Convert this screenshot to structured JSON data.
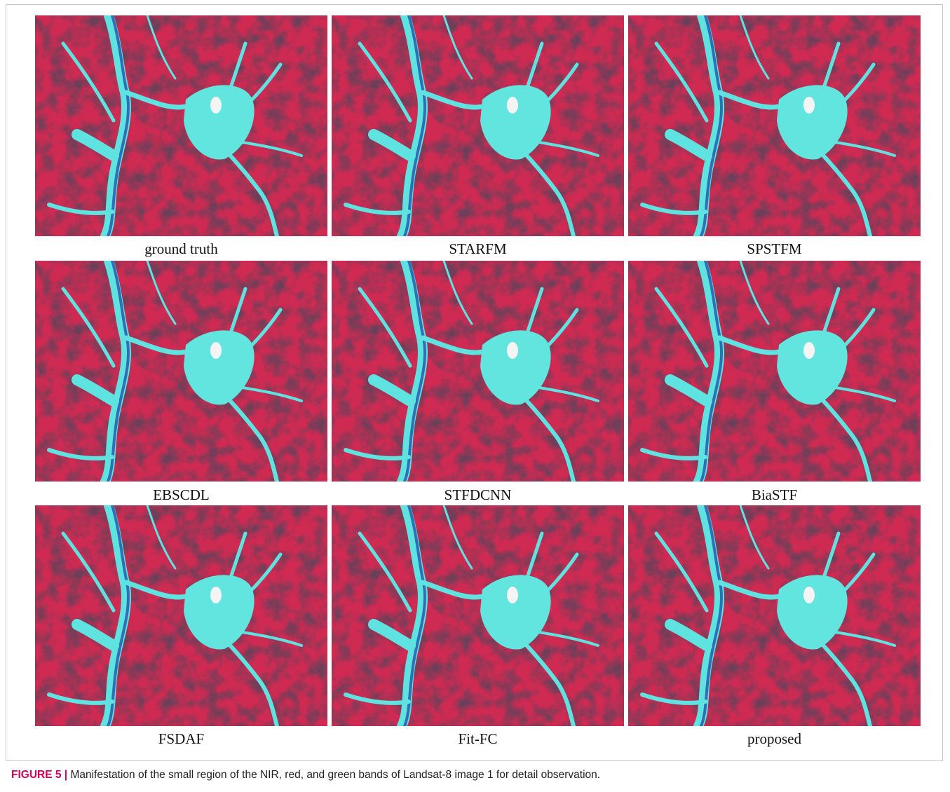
{
  "figure": {
    "panels": [
      {
        "label": "ground truth"
      },
      {
        "label": "STARFM"
      },
      {
        "label": "SPSTFM"
      },
      {
        "label": "EBSCDL"
      },
      {
        "label": "STFDCNN"
      },
      {
        "label": "BiaSTF"
      },
      {
        "label": "FSDAF"
      },
      {
        "label": "Fit-FC"
      },
      {
        "label": "proposed"
      }
    ],
    "caption": {
      "label": "FIGURE 5 |",
      "text": "Manifestation of the small region of the NIR, red, and green bands of Landsat-8 image 1 for detail observation."
    }
  }
}
